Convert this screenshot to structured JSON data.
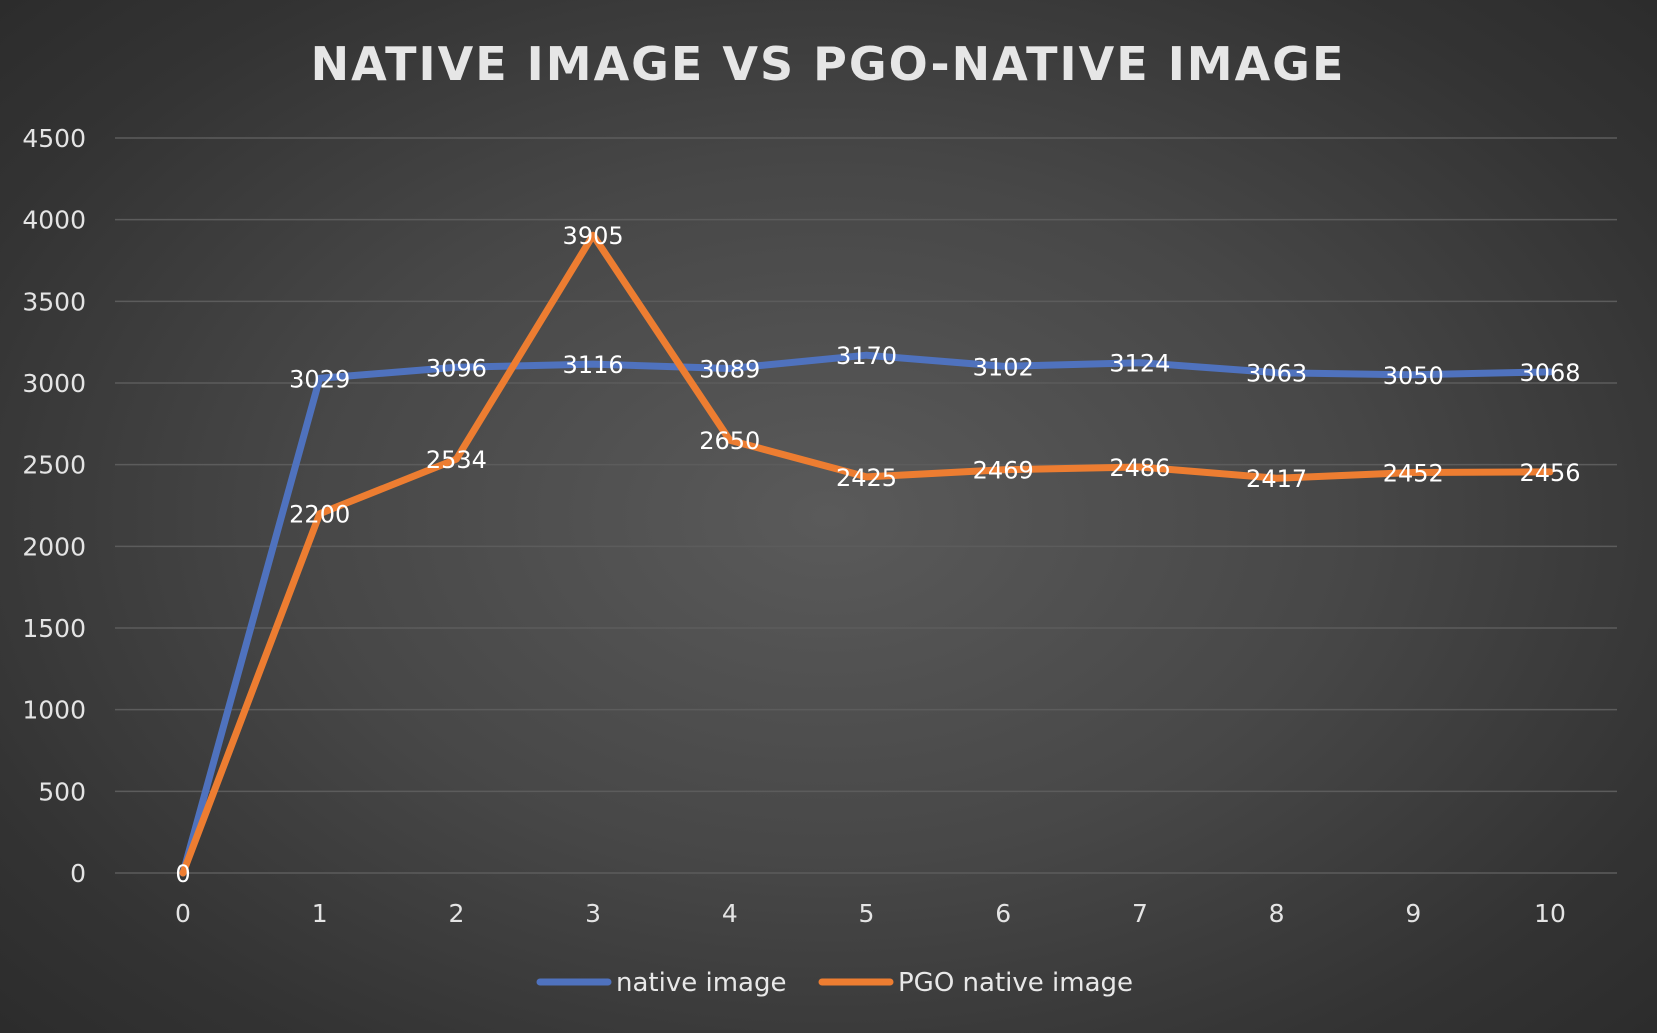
{
  "chart_data": {
    "type": "line",
    "title": "NATIVE IMAGE VS PGO-NATIVE IMAGE",
    "xlabel": "",
    "ylabel": "",
    "x": [
      0,
      1,
      2,
      3,
      4,
      5,
      6,
      7,
      8,
      9,
      10
    ],
    "ylim": [
      0,
      4500
    ],
    "yticks": [
      0,
      500,
      1000,
      1500,
      2000,
      2500,
      3000,
      3500,
      4000,
      4500
    ],
    "grid": true,
    "legend_position": "bottom",
    "series": [
      {
        "name": "native image",
        "color": "#4f72be",
        "values": [
          0,
          3029,
          3096,
          3116,
          3089,
          3170,
          3102,
          3124,
          3063,
          3050,
          3068
        ]
      },
      {
        "name": "PGO native image",
        "color": "#ed7d31",
        "values": [
          0,
          2200,
          2534,
          3905,
          2650,
          2425,
          2469,
          2486,
          2417,
          2452,
          2456
        ]
      }
    ]
  }
}
